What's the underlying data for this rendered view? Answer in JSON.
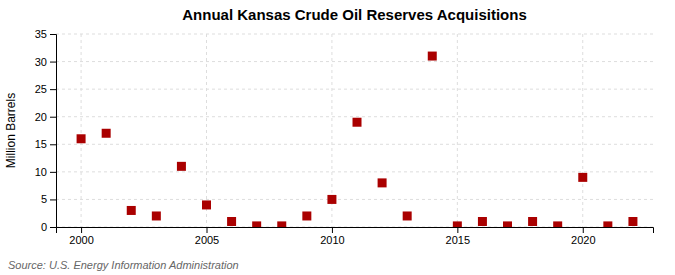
{
  "chart_data": {
    "type": "scatter",
    "title": "Annual Kansas Crude Oil Reserves Acquisitions",
    "ylabel": "Million Barrels",
    "source": "Source: U.S. Energy Information Administration",
    "x": [
      2000,
      2001,
      2002,
      2003,
      2004,
      2005,
      2006,
      2007,
      2008,
      2009,
      2010,
      2011,
      2012,
      2013,
      2014,
      2015,
      2016,
      2017,
      2018,
      2019,
      2020,
      2021,
      2022
    ],
    "values": [
      16.0,
      17.0,
      3.0,
      2.0,
      11.0,
      4.0,
      1.0,
      0.2,
      0.2,
      2.0,
      5.0,
      19.0,
      8.0,
      2.0,
      31.0,
      0.2,
      1.0,
      0.2,
      1.0,
      0.2,
      9.0,
      0.2,
      1.0
    ],
    "color": "#aa0000",
    "marker": "square",
    "xlim": [
      1999.0,
      2022.8
    ],
    "xticks": [
      2000,
      2005,
      2010,
      2015,
      2020
    ],
    "ylim": [
      0,
      35
    ],
    "yticks": [
      0,
      5,
      10,
      15,
      20,
      25,
      30,
      35
    ],
    "grid": true
  }
}
